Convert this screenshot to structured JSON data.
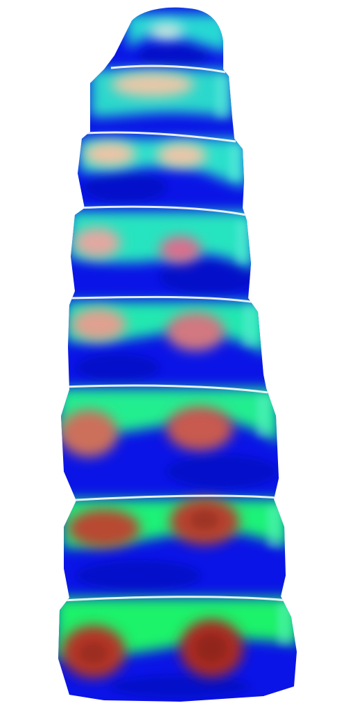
{
  "image": {
    "subject": "stacked-segments-heatmap",
    "segment_count": 8,
    "colors": {
      "background": "#ffffff",
      "base_blue": "#0a14e6",
      "deep_blue": "#0610b8",
      "cyan_band": "#28e0d6",
      "green_band": "#1df26a",
      "pink_spot": "#d88aa0",
      "red_spot": "#b8342a",
      "peach_spot": "#e8c4a4"
    }
  }
}
